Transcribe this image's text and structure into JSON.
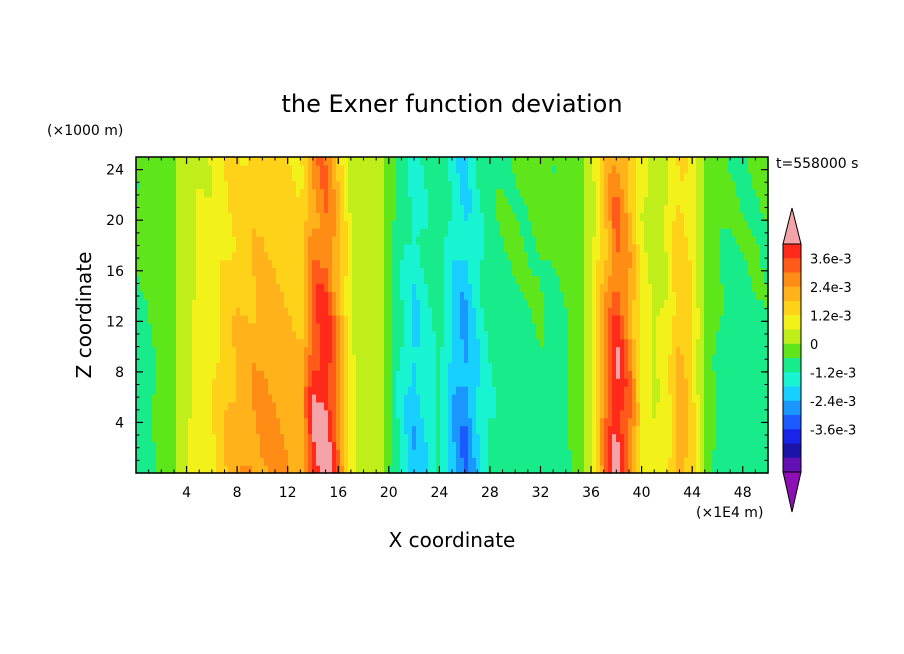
{
  "chart_data": {
    "type": "heatmap",
    "title": "the Exner function deviation",
    "xlabel": "X coordinate",
    "ylabel": "Z coordinate",
    "x_unit": "(×1E4 m)",
    "y_unit": "(×1000 m)",
    "time_label": "t=558000 s",
    "xlim": [
      0,
      50
    ],
    "ylim": [
      0,
      25
    ],
    "x_ticks": [
      "4",
      "8",
      "12",
      "16",
      "20",
      "24",
      "28",
      "32",
      "36",
      "40",
      "44",
      "48"
    ],
    "y_ticks": [
      "4",
      "8",
      "12",
      "16",
      "20",
      "24"
    ],
    "x_tick_values": [
      4,
      8,
      12,
      16,
      20,
      24,
      28,
      32,
      36,
      40,
      44,
      48
    ],
    "y_tick_values": [
      4,
      8,
      12,
      16,
      20,
      24
    ],
    "colorbar": {
      "labels": [
        "3.6e-3",
        "2.4e-3",
        "1.2e-3",
        "0",
        "-1.2e-3",
        "-2.4e-3",
        "-3.6e-3"
      ],
      "label_values": [
        0.0036,
        0.0024,
        0.0012,
        0,
        -0.0012,
        -0.0024,
        -0.0036
      ],
      "levels_top_to_bottom": [
        0.0042,
        0.0036,
        0.003,
        0.0024,
        0.0018,
        0.0012,
        0.0006,
        0.0,
        -0.0006,
        -0.0012,
        -0.0018,
        -0.0024,
        -0.003,
        -0.0036,
        -0.0042
      ],
      "colors_top_to_bottom": [
        "#f4a3a8",
        "#ff2a1a",
        "#ff5a1a",
        "#ff8c14",
        "#ffb21a",
        "#ffd21a",
        "#f2f21a",
        "#c0ee1a",
        "#5ee61a",
        "#18ec8a",
        "#18f4d2",
        "#18d0ff",
        "#1a96ff",
        "#1a5aff",
        "#1a24e8",
        "#1a14a8",
        "#6410b4",
        "#8c10b4"
      ],
      "over_color": "#f4a3a8",
      "under_color": "#8c10b4"
    },
    "column_profile": {
      "x": [
        0,
        1,
        2,
        3,
        4,
        5,
        6,
        7,
        8,
        9,
        10,
        11,
        12,
        13,
        14,
        15,
        16,
        17,
        18,
        19,
        20,
        21,
        22,
        23,
        24,
        25,
        26,
        27,
        28,
        29,
        30,
        31,
        32,
        33,
        34,
        35,
        36,
        37,
        38,
        39,
        40,
        41,
        42,
        43,
        44,
        45,
        46,
        47,
        48,
        49,
        50
      ],
      "value": [
        -0.0007,
        -0.0006,
        -0.0004,
        -0.0001,
        0.0004,
        0.0008,
        0.0009,
        0.0014,
        0.0017,
        0.0019,
        0.0021,
        0.002,
        0.0018,
        0.0016,
        0.0033,
        0.0037,
        0.0024,
        0.0007,
        0.0002,
        0.0004,
        -0.0004,
        -0.0012,
        -0.0018,
        -0.0014,
        -0.0009,
        -0.0018,
        -0.0024,
        -0.0016,
        -0.001,
        -0.0008,
        -0.0007,
        -0.0007,
        -0.0006,
        -0.0007,
        -0.0006,
        -0.0002,
        0.0004,
        0.0021,
        0.0037,
        0.0026,
        0.0009,
        0.0005,
        0.0007,
        0.0019,
        0.0012,
        -0.0002,
        -0.0006,
        -0.0008,
        -0.0008,
        -0.0007,
        -0.0007
      ]
    }
  }
}
